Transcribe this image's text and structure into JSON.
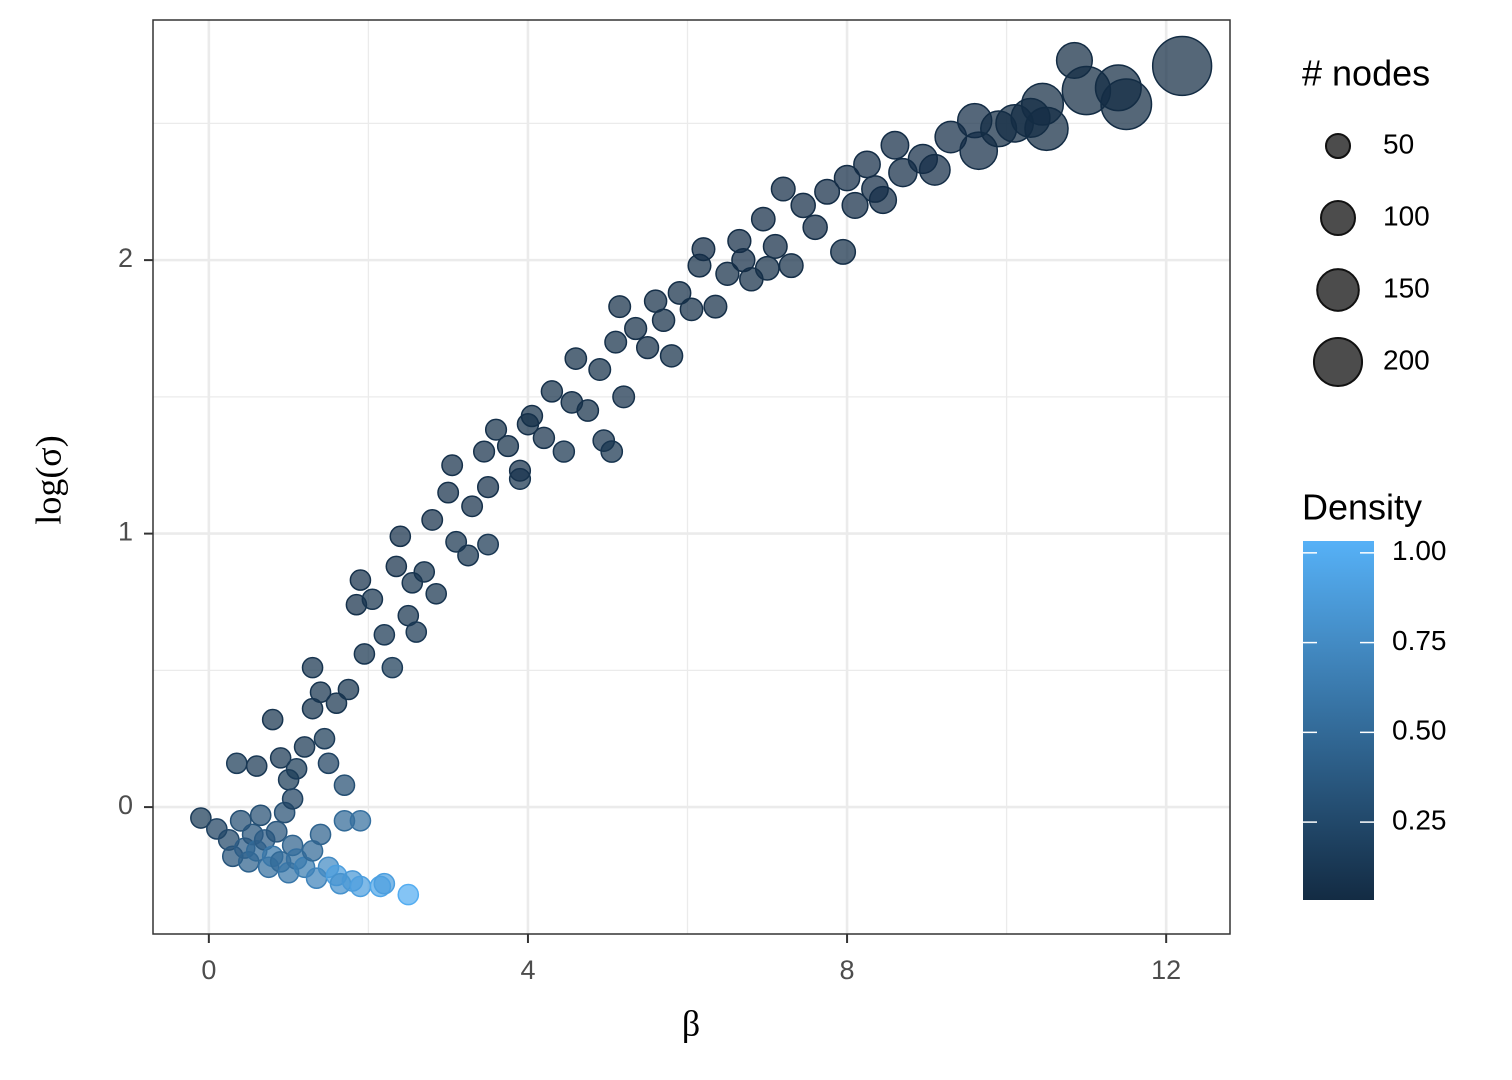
{
  "chart_data": {
    "type": "scatter",
    "x_label": "β",
    "y_label": "log(σ)",
    "xlim": [
      -0.7,
      12.8
    ],
    "ylim": [
      -0.464,
      2.878
    ],
    "xticks": [
      0,
      4,
      8,
      12
    ],
    "yticks": [
      0,
      1,
      2
    ],
    "x_minor_grid": [
      2,
      6,
      10
    ],
    "y_minor_grid": [
      0.5,
      1.5,
      2.5
    ],
    "grid": true,
    "x": [
      -0.1,
      0.1,
      0.25,
      0.3,
      0.4,
      0.45,
      0.5,
      0.55,
      0.6,
      0.7,
      0.75,
      0.8,
      0.85,
      0.9,
      1.0,
      1.05,
      1.1,
      1.2,
      1.3,
      1.35,
      1.4,
      1.5,
      1.6,
      1.65,
      1.8,
      1.9,
      2.15,
      2.2,
      2.5,
      1.7,
      1.9,
      0.95,
      0.65,
      0.35,
      0.6,
      0.8,
      0.9,
      1.0,
      1.05,
      1.1,
      1.2,
      1.3,
      1.3,
      1.4,
      1.45,
      1.5,
      1.6,
      1.7,
      1.75,
      1.85,
      1.95,
      1.9,
      2.05,
      2.2,
      2.3,
      2.35,
      2.4,
      2.5,
      2.6,
      2.55,
      2.7,
      2.8,
      2.85,
      3.0,
      3.05,
      3.1,
      3.25,
      3.3,
      3.45,
      3.5,
      3.5,
      3.6,
      3.75,
      3.9,
      4.05,
      4.2,
      4.3,
      4.45,
      4.55,
      4.6,
      4.75,
      4.9,
      4.95,
      5.05,
      5.1,
      5.15,
      5.2,
      5.35,
      5.5,
      5.7,
      5.8,
      5.9,
      6.05,
      6.15,
      6.2,
      6.35,
      6.5,
      6.65,
      6.8,
      6.95,
      7.1,
      7.2,
      7.3,
      7.45,
      7.6,
      7.75,
      7.95,
      8.0,
      8.1,
      8.25,
      8.45,
      8.6,
      8.7,
      8.95,
      9.1,
      9.3,
      9.6,
      9.65,
      9.9,
      10.1,
      10.3,
      10.45,
      10.5,
      10.85,
      11.0,
      11.4,
      11.5,
      12.2,
      8.35,
      6.7,
      7.0,
      5.6,
      4.0,
      3.9
    ],
    "values": [
      -0.04,
      -0.08,
      -0.12,
      -0.18,
      -0.05,
      -0.15,
      -0.2,
      -0.1,
      -0.16,
      -0.12,
      -0.22,
      -0.18,
      -0.09,
      -0.2,
      -0.24,
      -0.14,
      -0.19,
      -0.22,
      -0.16,
      -0.26,
      -0.1,
      -0.22,
      -0.25,
      -0.28,
      -0.27,
      -0.29,
      -0.29,
      -0.28,
      -0.32,
      -0.05,
      -0.05,
      -0.02,
      -0.03,
      0.16,
      0.15,
      0.32,
      0.18,
      0.1,
      0.03,
      0.14,
      0.22,
      0.36,
      0.51,
      0.42,
      0.25,
      0.16,
      0.38,
      0.08,
      0.43,
      0.74,
      0.56,
      0.83,
      0.76,
      0.63,
      0.51,
      0.88,
      0.99,
      0.7,
      0.64,
      0.82,
      0.86,
      1.05,
      0.78,
      1.15,
      1.25,
      0.97,
      0.92,
      1.1,
      1.3,
      1.17,
      0.96,
      1.38,
      1.32,
      1.2,
      1.43,
      1.35,
      1.52,
      1.3,
      1.48,
      1.64,
      1.45,
      1.6,
      1.34,
      1.3,
      1.7,
      1.83,
      1.5,
      1.75,
      1.68,
      1.78,
      1.65,
      1.88,
      1.82,
      1.98,
      2.04,
      1.83,
      1.95,
      2.07,
      1.93,
      2.15,
      2.05,
      2.26,
      1.98,
      2.2,
      2.12,
      2.25,
      2.03,
      2.3,
      2.2,
      2.35,
      2.22,
      2.42,
      2.32,
      2.37,
      2.33,
      2.45,
      2.51,
      2.4,
      2.48,
      2.5,
      2.52,
      2.57,
      2.48,
      2.73,
      2.62,
      2.63,
      2.57,
      2.71,
      2.26,
      2.0,
      1.97,
      1.85,
      1.4,
      1.23
    ],
    "sizes": [
      35,
      35,
      36,
      35,
      36,
      35,
      35,
      36,
      35,
      35,
      35,
      35,
      36,
      35,
      35,
      35,
      35,
      35,
      35,
      35,
      35,
      35,
      35,
      35,
      35,
      35,
      35,
      35,
      35,
      35,
      35,
      35,
      35,
      35,
      35,
      35,
      35,
      35,
      35,
      35,
      35,
      35,
      35,
      35,
      35,
      35,
      35,
      35,
      35,
      35,
      35,
      35,
      35,
      35,
      35,
      35,
      35,
      35,
      35,
      35,
      35,
      36,
      35,
      36,
      36,
      36,
      36,
      36,
      37,
      37,
      36,
      37,
      37,
      37,
      38,
      38,
      38,
      38,
      39,
      39,
      39,
      40,
      39,
      39,
      40,
      40,
      40,
      41,
      41,
      42,
      42,
      43,
      43,
      44,
      44,
      44,
      45,
      45,
      46,
      47,
      48,
      48,
      48,
      50,
      50,
      52,
      52,
      55,
      57,
      60,
      62,
      65,
      68,
      72,
      80,
      85,
      100,
      120,
      110,
      120,
      130,
      150,
      160,
      110,
      200,
      180,
      220,
      300,
      60,
      45,
      47,
      42,
      38,
      37
    ],
    "density": [
      0.15,
      0.2,
      0.25,
      0.35,
      0.3,
      0.4,
      0.45,
      0.35,
      0.5,
      0.4,
      0.55,
      0.6,
      0.35,
      0.5,
      0.6,
      0.45,
      0.55,
      0.65,
      0.5,
      0.7,
      0.45,
      0.75,
      0.9,
      0.8,
      0.85,
      0.9,
      0.95,
      0.9,
      1.0,
      0.5,
      0.55,
      0.3,
      0.3,
      0.15,
      0.12,
      0.1,
      0.12,
      0.15,
      0.2,
      0.15,
      0.12,
      0.1,
      0.1,
      0.1,
      0.15,
      0.2,
      0.1,
      0.3,
      0.1,
      0.08,
      0.1,
      0.08,
      0.1,
      0.12,
      0.15,
      0.08,
      0.08,
      0.1,
      0.12,
      0.1,
      0.1,
      0.08,
      0.1,
      0.08,
      0.08,
      0.1,
      0.1,
      0.08,
      0.08,
      0.08,
      0.12,
      0.07,
      0.07,
      0.1,
      0.07,
      0.08,
      0.07,
      0.1,
      0.07,
      0.07,
      0.07,
      0.07,
      0.09,
      0.1,
      0.07,
      0.06,
      0.08,
      0.06,
      0.06,
      0.06,
      0.07,
      0.06,
      0.06,
      0.06,
      0.05,
      0.06,
      0.06,
      0.05,
      0.06,
      0.05,
      0.05,
      0.05,
      0.06,
      0.05,
      0.05,
      0.05,
      0.06,
      0.05,
      0.05,
      0.05,
      0.05,
      0.05,
      0.05,
      0.05,
      0.05,
      0.05,
      0.05,
      0.05,
      0.04,
      0.04,
      0.04,
      0.04,
      0.04,
      0.04,
      0.04,
      0.04,
      0.04,
      0.04,
      0.05,
      0.05,
      0.06,
      0.06,
      0.07,
      0.08
    ],
    "size_legend": {
      "title": "# nodes",
      "breaks": [
        50,
        100,
        150,
        200
      ]
    },
    "color_legend": {
      "title": "Density",
      "lim": [
        0.033,
        1.033
      ],
      "ticks": [
        0.25,
        {
          "value": 0.5,
          "label": "0.50"
        },
        0.75,
        {
          "value": 1,
          "label": "1.00"
        }
      ],
      "low": "#132B43",
      "high": "#56B1F7"
    }
  }
}
